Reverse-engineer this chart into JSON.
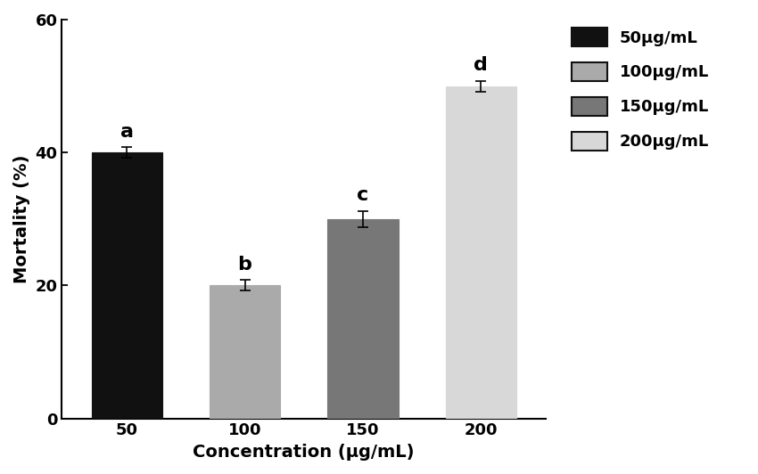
{
  "categories": [
    "50",
    "100",
    "150",
    "200"
  ],
  "values": [
    40,
    20,
    30,
    50
  ],
  "errors": [
    0.8,
    0.8,
    1.2,
    0.8
  ],
  "bar_colors": [
    "#111111",
    "#aaaaaa",
    "#777777",
    "#d8d8d8"
  ],
  "bar_edgecolors": [
    "#111111",
    "#aaaaaa",
    "#777777",
    "#d8d8d8"
  ],
  "letters": [
    "a",
    "b",
    "c",
    "d"
  ],
  "ylabel": "Mortality (%)",
  "xlabel": "Concentration (μg/mL)",
  "ylim": [
    0,
    60
  ],
  "yticks": [
    0,
    20,
    40,
    60
  ],
  "legend_labels": [
    "50μg/mL",
    "100μg/mL",
    "150μg/mL",
    "200μg/mL"
  ],
  "legend_facecolors": [
    "#111111",
    "#aaaaaa",
    "#777777",
    "#d8d8d8"
  ],
  "legend_edgecolor": "#111111",
  "bar_width": 0.6,
  "letter_fontsize": 16,
  "axis_fontsize": 14,
  "tick_fontsize": 13,
  "legend_fontsize": 13,
  "background_color": "#ffffff"
}
